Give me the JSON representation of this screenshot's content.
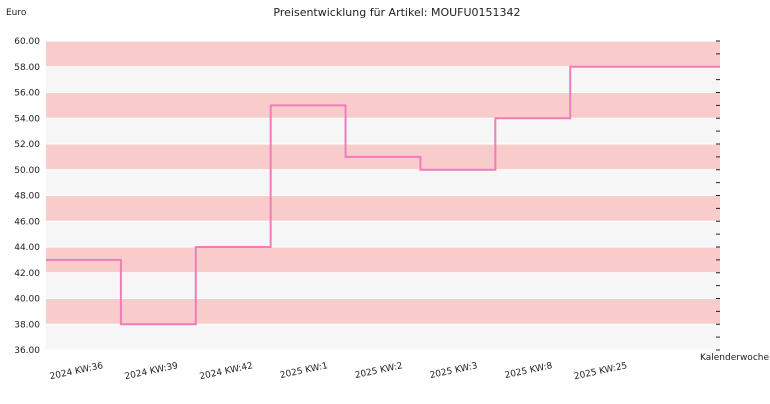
{
  "chart_data": {
    "type": "line",
    "step": true,
    "title": "Preisentwicklung für Artikel: MOUFU0151342",
    "ylabel": "Euro",
    "xlabel": "Kalenderwoche",
    "ylim": [
      36,
      60
    ],
    "y_ticks": [
      "36.00",
      "38.00",
      "40.00",
      "42.00",
      "44.00",
      "46.00",
      "48.00",
      "50.00",
      "52.00",
      "54.00",
      "56.00",
      "58.00",
      "60.00"
    ],
    "categories": [
      "2024 KW:36",
      "2024 KW:39",
      "2024 KW:42",
      "2025 KW:1",
      "2025 KW:2",
      "2025 KW:3",
      "2025 KW:8",
      "2025 KW:25"
    ],
    "series": [
      {
        "values": [
          43,
          38,
          44,
          55,
          51,
          50,
          54,
          58
        ]
      }
    ],
    "band_colors": [
      "#f9cccc",
      "#f6f6f6"
    ],
    "line_color": "#f07cbb",
    "grid": true
  }
}
